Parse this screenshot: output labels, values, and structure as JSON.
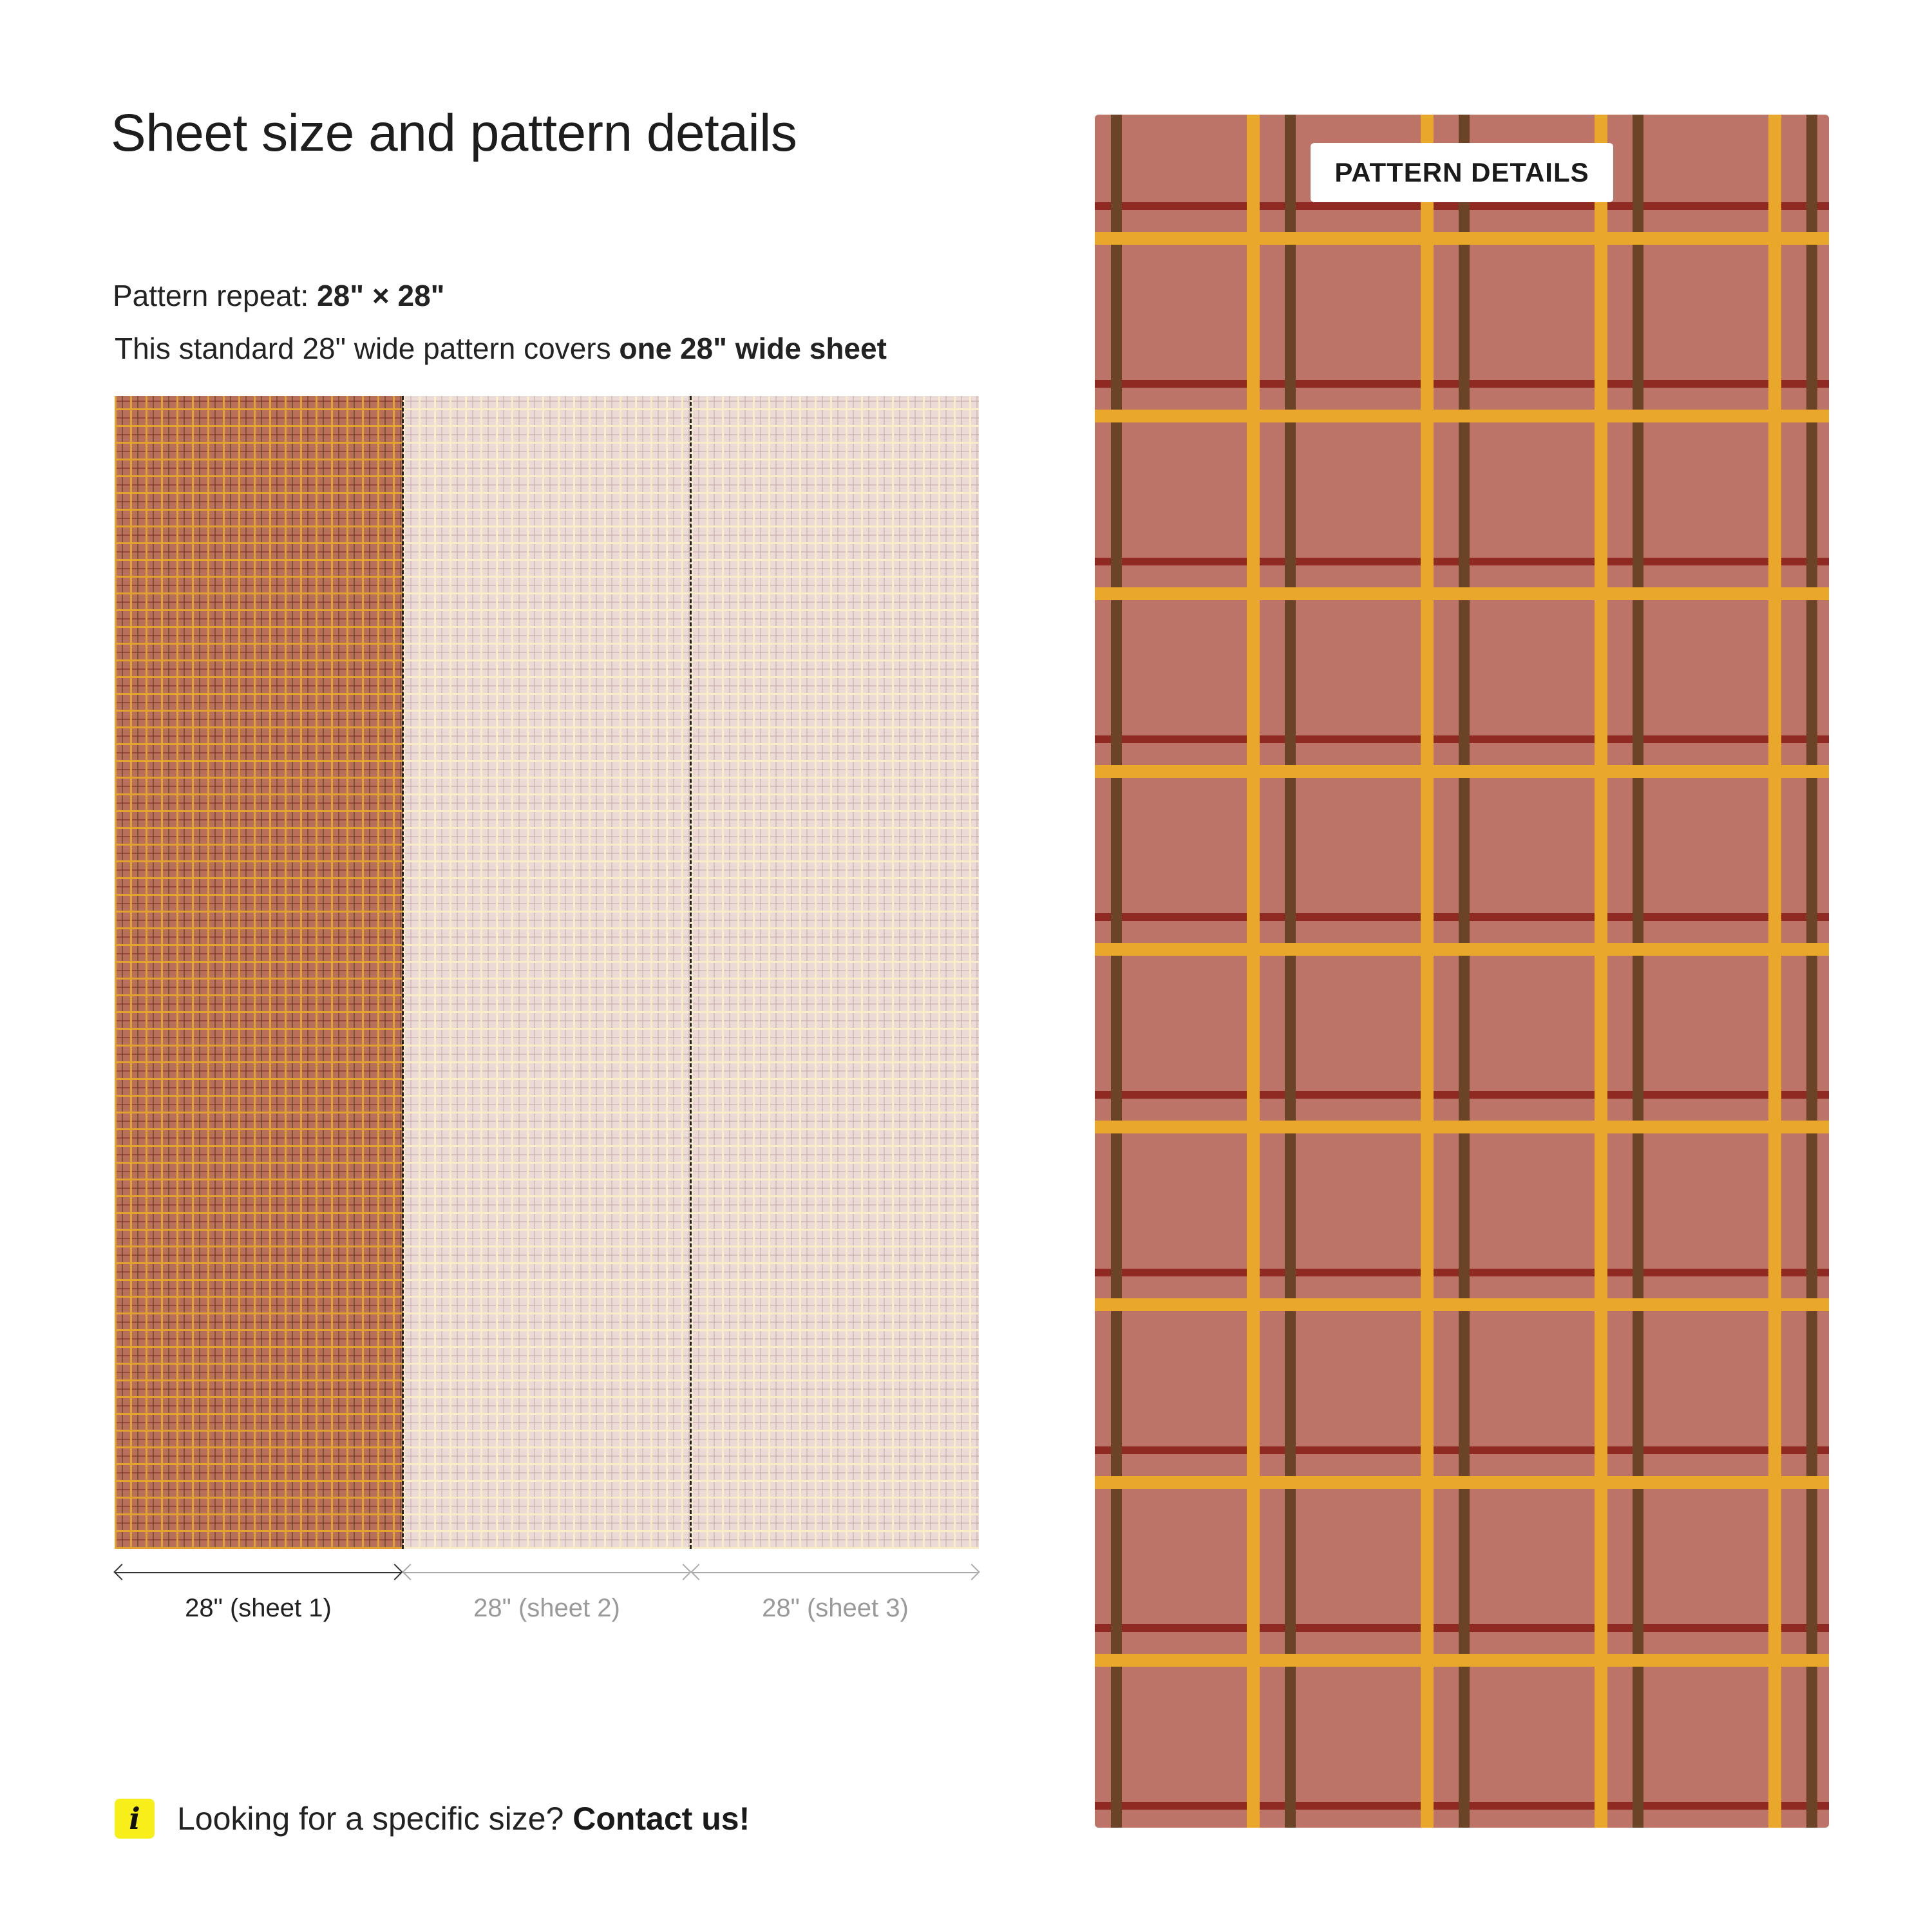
{
  "title": "Sheet size and pattern details",
  "repeat": {
    "label": "Pattern repeat: ",
    "value": "28\" × 28\""
  },
  "coverage": {
    "text": "This standard 28\" wide pattern covers ",
    "emphasis": "one 28\" wide sheet"
  },
  "sheets": [
    {
      "label": "28\" (sheet 1)",
      "active": true
    },
    {
      "label": "28\" (sheet 2)",
      "active": false
    },
    {
      "label": "28\" (sheet 3)",
      "active": false
    }
  ],
  "info": {
    "icon": "info-icon",
    "icon_glyph": "i",
    "text": "Looking for a specific size? ",
    "link": "Contact us!"
  },
  "detail_panel": {
    "badge": "PATTERN DETAILS"
  },
  "colors": {
    "pattern_base": "#bd7468",
    "pattern_yellow": "#e9a82b",
    "pattern_brown": "#6b4428",
    "pattern_red": "#8e2a22",
    "info_badge": "#f7ee1a"
  }
}
